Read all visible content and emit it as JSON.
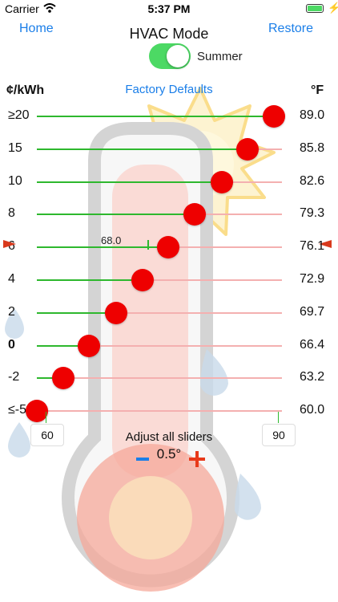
{
  "status_bar": {
    "carrier": "Carrier",
    "time": "5:37 PM",
    "wifi_icon": "wifi-icon",
    "battery_icon": "battery-icon",
    "charging_icon": "charging-bolt-icon"
  },
  "nav": {
    "home_label": "Home",
    "title": "HVAC Mode",
    "restore_label": "Restore"
  },
  "mode_toggle": {
    "label": "Summer",
    "on": true
  },
  "headers": {
    "price_unit": "¢/kWh",
    "factory_defaults": "Factory Defaults",
    "temp_unit": "°F"
  },
  "sliders": [
    {
      "price": "≥20",
      "temp": "89.0",
      "bold": false
    },
    {
      "price": "15",
      "temp": "85.8",
      "bold": false
    },
    {
      "price": "10",
      "temp": "82.6",
      "bold": false
    },
    {
      "price": "8",
      "temp": "79.3",
      "bold": false
    },
    {
      "price": "6",
      "temp": "76.1",
      "bold": false,
      "current_temp": "68.0",
      "current_marker_value": 68.0
    },
    {
      "price": "4",
      "temp": "72.9",
      "bold": false
    },
    {
      "price": "2",
      "temp": "69.7",
      "bold": false
    },
    {
      "price": "0",
      "temp": "66.4",
      "bold": true
    },
    {
      "price": "-2",
      "temp": "63.2",
      "bold": false
    },
    {
      "price": "≤-5",
      "temp": "60.0",
      "bold": false
    }
  ],
  "range": {
    "min": 60,
    "max": 90,
    "min_label": "60",
    "max_label": "90"
  },
  "adjust": {
    "label": "Adjust all sliders",
    "step": "0.5°",
    "minus_icon": "minus-icon",
    "plus_icon": "plus-icon"
  },
  "colors": {
    "accent": "#1a7ee8",
    "track_active": "#2eb82e",
    "track_inactive": "#f4b0b0",
    "thumb": "#ee0000",
    "toggle_on": "#4cd964",
    "pointer": "#d9391c"
  },
  "background": {
    "thermometer_icon": "thermometer-icon",
    "sun_icon": "sun-icon",
    "droplet_icon": "water-droplet-icon"
  }
}
